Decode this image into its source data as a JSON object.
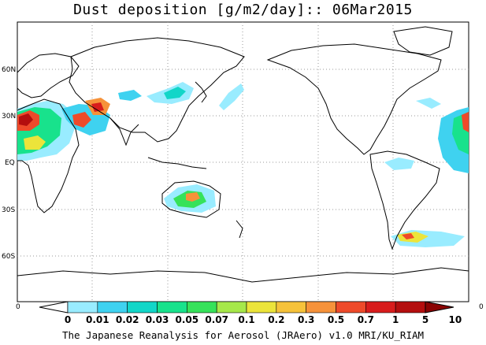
{
  "title": "Dust deposition [g/m2/day]:: 06Mar2015",
  "credit": "The Japanese Reanalysis for Aerosol (JRAero) v1.0 MRI/KU_RIAM",
  "latitude_labels": [
    "60N",
    "30N",
    "EQ",
    "30S",
    "60S"
  ],
  "edge_labels": {
    "left": "0",
    "right": "0"
  },
  "colorbar": {
    "labels": [
      "0",
      "0.01",
      "0.02",
      "0.03",
      "0.05",
      "0.07",
      "0.1",
      "0.2",
      "0.3",
      "0.5",
      "0.7",
      "1",
      "5",
      "10"
    ],
    "colors": [
      "#ffffff",
      "#99ecff",
      "#3fd2f0",
      "#12d6c8",
      "#18e28c",
      "#36e25a",
      "#a6e84a",
      "#ece43a",
      "#f6c23a",
      "#f6923a",
      "#ee4a2a",
      "#d81c1c",
      "#b40e0e",
      "#8a0303"
    ]
  },
  "colors": {
    "land_outline": "#000000",
    "grid": "#9a9a9a"
  }
}
